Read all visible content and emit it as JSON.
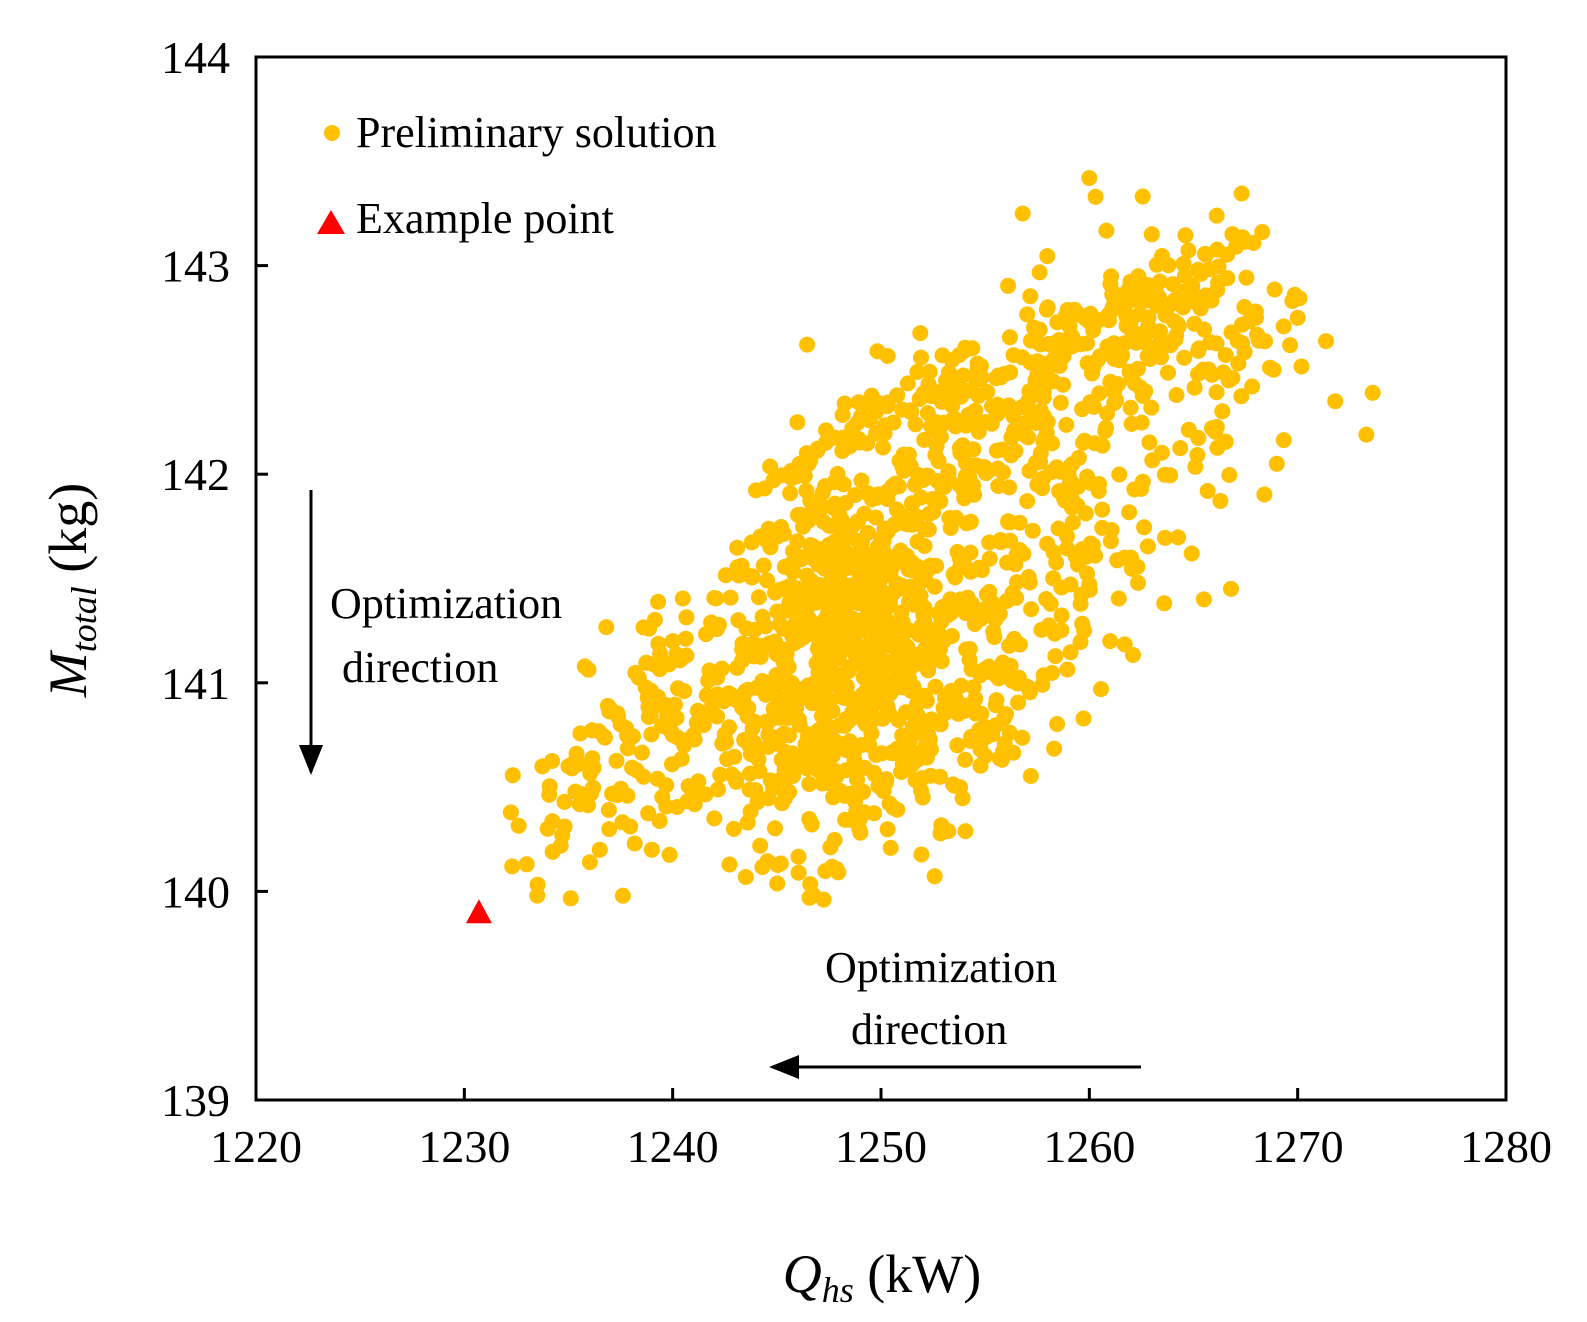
{
  "chart_data": {
    "type": "scatter",
    "xlabel": {
      "symbol": "Q",
      "subscript": "hs",
      "unit": " (kW)"
    },
    "ylabel": {
      "symbol": "M",
      "subscript": "total",
      "unit": " (kg)"
    },
    "xlim": [
      1220,
      1280
    ],
    "ylim": [
      139,
      144
    ],
    "xticks": [
      "1220",
      "1230",
      "1240",
      "1250",
      "1260",
      "1270",
      "1280"
    ],
    "yticks": [
      "139",
      "140",
      "141",
      "142",
      "143",
      "144"
    ],
    "grid": false,
    "legend_position": "top-left",
    "series": [
      {
        "name": "Preliminary solution",
        "marker": "circle",
        "color": "#FFC000",
        "point_count_approx": 1600,
        "anchors": [
          [
            1232.3,
            140.12
          ],
          [
            1233.5,
            139.98
          ],
          [
            1234.0,
            140.3
          ],
          [
            1235.0,
            140.6
          ],
          [
            1236.5,
            140.2
          ],
          [
            1237.5,
            140.8
          ],
          [
            1238.6,
            140.55
          ],
          [
            1239.0,
            140.2
          ],
          [
            1240.0,
            141.2
          ],
          [
            1241.0,
            140.75
          ],
          [
            1242.0,
            140.35
          ],
          [
            1243.6,
            140.33
          ],
          [
            1244.5,
            141.0
          ],
          [
            1245.0,
            141.7
          ],
          [
            1246.0,
            141.3
          ],
          [
            1247.0,
            141.05
          ],
          [
            1248.0,
            141.4
          ],
          [
            1249.0,
            140.35
          ],
          [
            1250.0,
            141.0
          ],
          [
            1251.0,
            141.6
          ],
          [
            1252.0,
            140.45
          ],
          [
            1253.0,
            141.2
          ],
          [
            1254.0,
            142.4
          ],
          [
            1255.0,
            140.65
          ],
          [
            1256.0,
            140.85
          ],
          [
            1256.8,
            143.25
          ],
          [
            1258.0,
            142.8
          ],
          [
            1259.0,
            142.0
          ],
          [
            1260.0,
            143.42
          ],
          [
            1260.3,
            143.33
          ],
          [
            1261.0,
            141.2
          ],
          [
            1262.0,
            141.6
          ],
          [
            1263.0,
            143.15
          ],
          [
            1264.5,
            142.8
          ],
          [
            1265.5,
            141.4
          ],
          [
            1266.8,
            141.45
          ],
          [
            1268.0,
            142.75
          ],
          [
            1269.0,
            142.05
          ],
          [
            1270.0,
            142.75
          ],
          [
            1271.8,
            142.35
          ],
          [
            1273.3,
            142.19
          ],
          [
            1273.6,
            142.39
          ]
        ]
      },
      {
        "name": "Example point",
        "marker": "triangle",
        "color": "#FF0000",
        "points": [
          [
            1230.7,
            139.9
          ]
        ]
      }
    ],
    "annotations": [
      {
        "lines": [
          "Optimization",
          "direction"
        ],
        "arrow": "down"
      },
      {
        "lines": [
          "Optimization",
          "direction"
        ],
        "arrow": "left"
      }
    ]
  }
}
